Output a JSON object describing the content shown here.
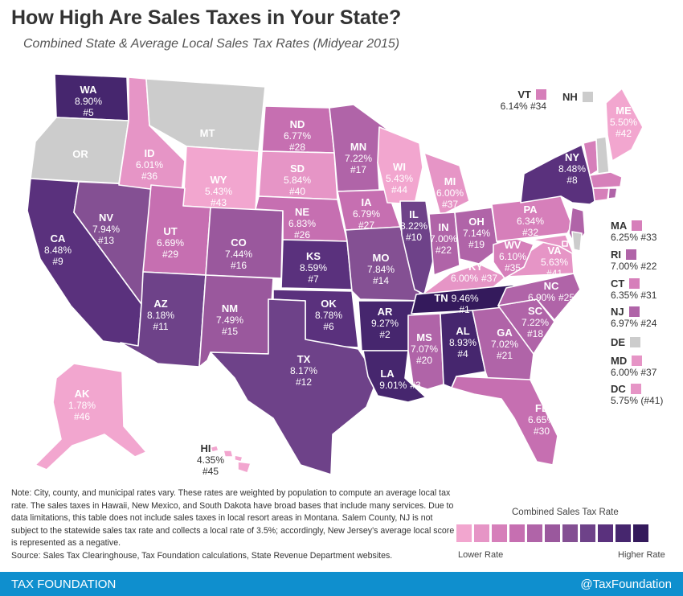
{
  "header": {
    "title": "How High Are Sales Taxes in Your State?",
    "subtitle": "Combined State & Average Local Sales Tax Rates (Midyear 2015)"
  },
  "colors": {
    "scale": [
      "#f2a6cf",
      "#e695c6",
      "#d67fba",
      "#c66fb1",
      "#b064a8",
      "#9a589d",
      "#845093",
      "#6e4289",
      "#5a317d",
      "#46266e",
      "#341a5c"
    ],
    "no_tax": "#cccccc",
    "footer": "#0f8fce"
  },
  "states": {
    "WA": {
      "abbr": "WA",
      "rate": "8.90%",
      "rank": "#5"
    },
    "OR": {
      "abbr": "OR"
    },
    "CA": {
      "abbr": "CA",
      "rate": "8.48%",
      "rank": "#9"
    },
    "NV": {
      "abbr": "NV",
      "rate": "7.94%",
      "rank": "#13"
    },
    "ID": {
      "abbr": "ID",
      "rate": "6.01%",
      "rank": "#36"
    },
    "MT": {
      "abbr": "MT"
    },
    "WY": {
      "abbr": "WY",
      "rate": "5.43%",
      "rank": "#43"
    },
    "UT": {
      "abbr": "UT",
      "rate": "6.69%",
      "rank": "#29"
    },
    "AZ": {
      "abbr": "AZ",
      "rate": "8.18%",
      "rank": "#11"
    },
    "CO": {
      "abbr": "CO",
      "rate": "7.44%",
      "rank": "#16"
    },
    "NM": {
      "abbr": "NM",
      "rate": "7.49%",
      "rank": "#15"
    },
    "ND": {
      "abbr": "ND",
      "rate": "6.77%",
      "rank": "#28"
    },
    "SD": {
      "abbr": "SD",
      "rate": "5.84%",
      "rank": "#40"
    },
    "NE": {
      "abbr": "NE",
      "rate": "6.83%",
      "rank": "#26"
    },
    "KS": {
      "abbr": "KS",
      "rate": "8.59%",
      "rank": "#7"
    },
    "OK": {
      "abbr": "OK",
      "rate": "8.78%",
      "rank": "#6"
    },
    "TX": {
      "abbr": "TX",
      "rate": "8.17%",
      "rank": "#12"
    },
    "MN": {
      "abbr": "MN",
      "rate": "7.22%",
      "rank": "#17"
    },
    "IA": {
      "abbr": "IA",
      "rate": "6.79%",
      "rank": "#27"
    },
    "MO": {
      "abbr": "MO",
      "rate": "7.84%",
      "rank": "#14"
    },
    "AR": {
      "abbr": "AR",
      "rate": "9.27%",
      "rank": "#2"
    },
    "LA": {
      "abbr": "LA",
      "rate": "9.01%",
      "rank": "#3"
    },
    "WI": {
      "abbr": "WI",
      "rate": "5.43%",
      "rank": "#44"
    },
    "IL": {
      "abbr": "IL",
      "rate": "8.22%",
      "rank": "#10"
    },
    "MI": {
      "abbr": "MI",
      "rate": "6.00%",
      "rank": "#37"
    },
    "IN": {
      "abbr": "IN",
      "rate": "7.00%",
      "rank": "#22"
    },
    "OH": {
      "abbr": "OH",
      "rate": "7.14%",
      "rank": "#19"
    },
    "KY": {
      "abbr": "KY",
      "rate": "6.00%",
      "rank": "#37"
    },
    "TN": {
      "abbr": "TN",
      "rate": "9.46%",
      "rank": "#1"
    },
    "MS": {
      "abbr": "MS",
      "rate": "7.07%",
      "rank": "#20"
    },
    "AL": {
      "abbr": "AL",
      "rate": "8.93%",
      "rank": "#4"
    },
    "GA": {
      "abbr": "GA",
      "rate": "7.02%",
      "rank": "#21"
    },
    "FL": {
      "abbr": "FL",
      "rate": "6.65%",
      "rank": "#30"
    },
    "SC": {
      "abbr": "SC",
      "rate": "7.22%",
      "rank": "#18"
    },
    "NC": {
      "abbr": "NC",
      "rate": "6.90%",
      "rank": "#25"
    },
    "VA": {
      "abbr": "VA",
      "rate": "5.63%",
      "rank": "#41"
    },
    "WV": {
      "abbr": "WV",
      "rate": "6.10%",
      "rank": "#35"
    },
    "PA": {
      "abbr": "PA",
      "rate": "6.34%",
      "rank": "#32"
    },
    "NY": {
      "abbr": "NY",
      "rate": "8.48%",
      "rank": "#8"
    },
    "ME": {
      "abbr": "ME",
      "rate": "5.50%",
      "rank": "#42"
    },
    "VT": {
      "abbr": "VT",
      "rate": "6.14%",
      "rank": "#34"
    },
    "NH": {
      "abbr": "NH"
    },
    "MA": {
      "abbr": "MA",
      "rate": "6.25%",
      "rank": "#33"
    },
    "RI": {
      "abbr": "RI",
      "rate": "7.00%",
      "rank": "#22"
    },
    "CT": {
      "abbr": "CT",
      "rate": "6.35%",
      "rank": "#31"
    },
    "NJ": {
      "abbr": "NJ",
      "rate": "6.97%",
      "rank": "#24"
    },
    "DE": {
      "abbr": "DE"
    },
    "MD": {
      "abbr": "MD",
      "rate": "6.00%",
      "rank": "#37"
    },
    "DC": {
      "abbr": "DC",
      "rate": "5.75% (#41)"
    },
    "AK": {
      "abbr": "AK",
      "rate": "1.78%",
      "rank": "#46"
    },
    "HI": {
      "abbr": "HI",
      "rate": "4.35%",
      "rank": "#45"
    }
  },
  "note": {
    "text": "Note: City, county, and municipal rates vary. These rates are weighted by population to compute an average local tax rate. The sales taxes in Hawaii, New Mexico, and South Dakota have broad bases that include many services. Due to data limitations, this table does not include sales taxes in local resort areas in Montana. Salem County, NJ is not subject to the statewide sales tax rate and collects a local rate of 3.5%; accordingly, New Jersey's average local score is represented as a negative.",
    "source": "Source: Sales Tax Clearinghouse, Tax Foundation calculations, State Revenue Department websites."
  },
  "legend": {
    "title": "Combined Sales Tax Rate",
    "low": "Lower Rate",
    "high": "Higher Rate"
  },
  "footer": {
    "brand": "TAX FOUNDATION",
    "handle": "@TaxFoundation"
  }
}
